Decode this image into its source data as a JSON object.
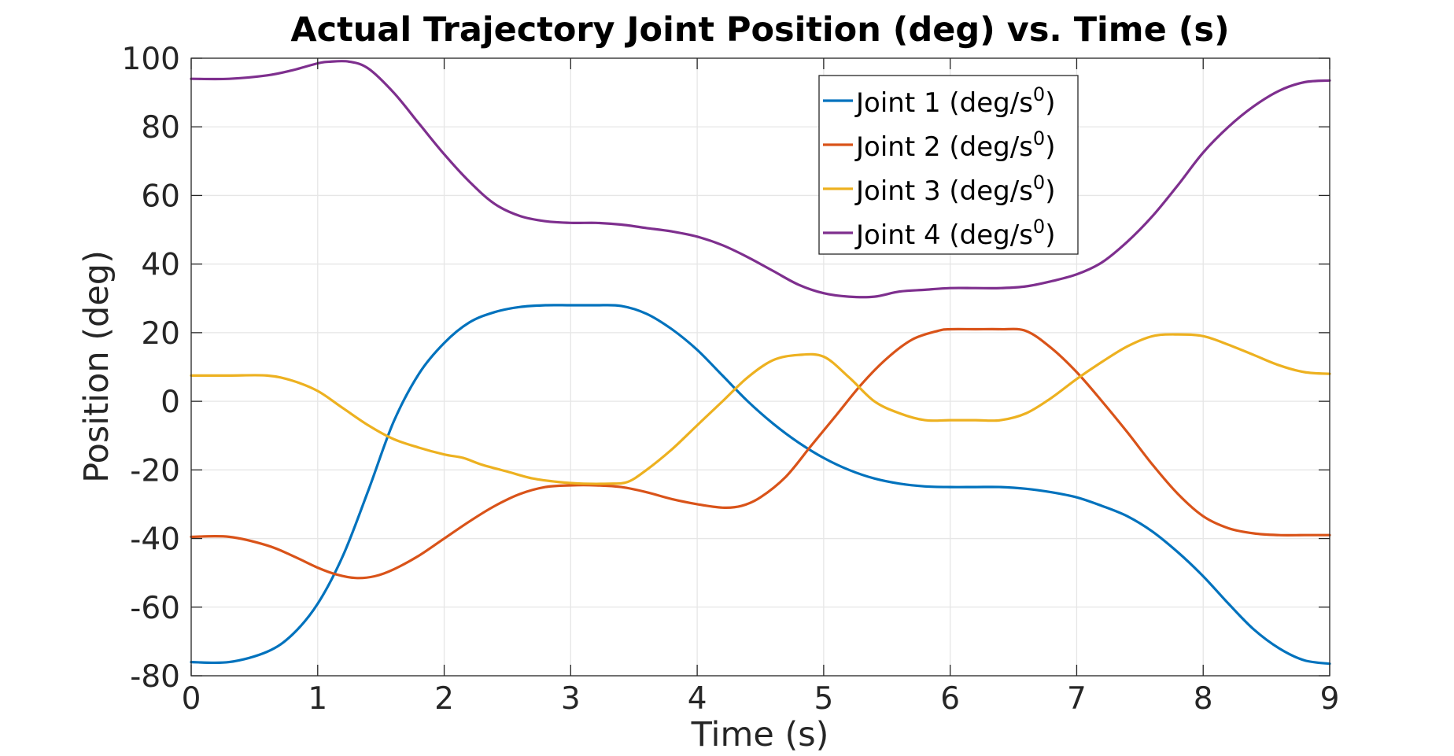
{
  "chart_data": {
    "type": "line",
    "title": "Actual Trajectory Joint Position (deg) vs. Time (s)",
    "xlabel": "Time (s)",
    "ylabel": "Position (deg)",
    "xlim": [
      0,
      9
    ],
    "ylim": [
      -80,
      100
    ],
    "xticks": [
      "0",
      "1",
      "2",
      "3",
      "4",
      "5",
      "6",
      "7",
      "8",
      "9"
    ],
    "yticks": [
      "100",
      "80",
      "60",
      "40",
      "20",
      "0",
      "-20",
      "-40",
      "-60",
      "-80"
    ],
    "grid": true,
    "legend_position": "top-center",
    "legend_box": true,
    "legend_unit_suffix": "0",
    "series": [
      {
        "name": "Joint 1 (deg/s",
        "color": "#0072BD",
        "x": [
          0,
          0.3,
          0.6,
          0.8,
          1.0,
          1.2,
          1.4,
          1.6,
          1.8,
          2.0,
          2.2,
          2.4,
          2.6,
          2.8,
          3.0,
          3.2,
          3.4,
          3.6,
          3.8,
          4.0,
          4.2,
          4.4,
          4.6,
          4.8,
          5.0,
          5.2,
          5.4,
          5.6,
          5.8,
          6.0,
          6.2,
          6.4,
          6.6,
          6.8,
          7.0,
          7.2,
          7.4,
          7.6,
          7.8,
          8.0,
          8.2,
          8.4,
          8.6,
          8.8,
          9.0
        ],
        "values": [
          -76,
          -76,
          -73,
          -68,
          -59,
          -45,
          -26,
          -6,
          8,
          17,
          23,
          26,
          27.5,
          28,
          28,
          28,
          27.8,
          25.5,
          21,
          15,
          7.5,
          0,
          -6.5,
          -12,
          -16.5,
          -20,
          -22.5,
          -24,
          -24.8,
          -25,
          -25,
          -25,
          -25.5,
          -26.5,
          -28,
          -30.5,
          -33.5,
          -38,
          -44,
          -51,
          -59,
          -66.5,
          -72,
          -75.5,
          -76.5
        ]
      },
      {
        "name": "Joint 2 (deg/s",
        "color": "#D95319",
        "x": [
          0,
          0.3,
          0.6,
          0.8,
          1.0,
          1.15,
          1.3,
          1.45,
          1.6,
          1.8,
          2.0,
          2.2,
          2.4,
          2.6,
          2.8,
          3.0,
          3.2,
          3.4,
          3.6,
          3.8,
          4.0,
          4.2,
          4.35,
          4.5,
          4.7,
          4.9,
          5.1,
          5.3,
          5.5,
          5.7,
          5.9,
          6.0,
          6.2,
          6.4,
          6.6,
          6.8,
          7.0,
          7.2,
          7.4,
          7.6,
          7.8,
          8.0,
          8.2,
          8.4,
          8.6,
          8.8,
          9.0
        ],
        "values": [
          -39.5,
          -39.5,
          -42,
          -45,
          -48.5,
          -50.5,
          -51.5,
          -51,
          -49,
          -45,
          -40,
          -35,
          -30.5,
          -27,
          -25,
          -24.5,
          -24.5,
          -25,
          -26.5,
          -28.5,
          -30,
          -31,
          -30.5,
          -28,
          -22,
          -13,
          -4,
          5,
          12.5,
          18,
          20.5,
          21,
          21,
          21,
          20.5,
          15.5,
          8.5,
          0,
          -9,
          -18.5,
          -27,
          -33.5,
          -37,
          -38.5,
          -39,
          -39,
          -39
        ]
      },
      {
        "name": "Joint 3 (deg/s",
        "color": "#EDB120",
        "x": [
          0,
          0.3,
          0.6,
          0.8,
          1.0,
          1.2,
          1.4,
          1.6,
          1.8,
          2.0,
          2.15,
          2.3,
          2.5,
          2.7,
          2.9,
          3.1,
          3.3,
          3.45,
          3.6,
          3.8,
          4.0,
          4.2,
          4.4,
          4.6,
          4.8,
          5.0,
          5.2,
          5.4,
          5.6,
          5.8,
          6.0,
          6.2,
          6.4,
          6.6,
          6.8,
          7.0,
          7.2,
          7.4,
          7.6,
          7.8,
          8.0,
          8.2,
          8.4,
          8.6,
          8.8,
          9.0
        ],
        "values": [
          7.5,
          7.5,
          7.5,
          6,
          3,
          -2,
          -7,
          -11,
          -13.5,
          -15.5,
          -16.5,
          -18.5,
          -20.5,
          -22.5,
          -23.5,
          -24,
          -24,
          -23.5,
          -20,
          -14,
          -7,
          0,
          7,
          12,
          13.5,
          13,
          7,
          0,
          -3.5,
          -5.5,
          -5.5,
          -5.5,
          -5.5,
          -3.5,
          1,
          6.5,
          11.5,
          16,
          19,
          19.5,
          19,
          16.5,
          13.5,
          10.5,
          8.5,
          8
        ]
      },
      {
        "name": "Joint 4 (deg/s",
        "color": "#7E2F8E",
        "x": [
          0,
          0.3,
          0.6,
          0.8,
          1.0,
          1.1,
          1.25,
          1.4,
          1.6,
          1.8,
          2.0,
          2.2,
          2.4,
          2.6,
          2.8,
          3.0,
          3.2,
          3.4,
          3.6,
          3.8,
          4.0,
          4.2,
          4.4,
          4.6,
          4.8,
          5.0,
          5.2,
          5.4,
          5.6,
          5.8,
          6.0,
          6.2,
          6.4,
          6.6,
          6.8,
          7.0,
          7.2,
          7.4,
          7.6,
          7.8,
          8.0,
          8.2,
          8.4,
          8.6,
          8.8,
          9.0
        ],
        "values": [
          94,
          94,
          95,
          96.5,
          98.5,
          99,
          99,
          97,
          90,
          81,
          72,
          64,
          57.5,
          54,
          52.5,
          52,
          52,
          51.5,
          50.5,
          49.5,
          48,
          45.5,
          42,
          38,
          34,
          31.5,
          30.5,
          30.5,
          32,
          32.5,
          33,
          33,
          33,
          33.5,
          35,
          37,
          40.5,
          46.5,
          54,
          63,
          72.5,
          80,
          86,
          90.5,
          93,
          93.5
        ]
      }
    ]
  }
}
